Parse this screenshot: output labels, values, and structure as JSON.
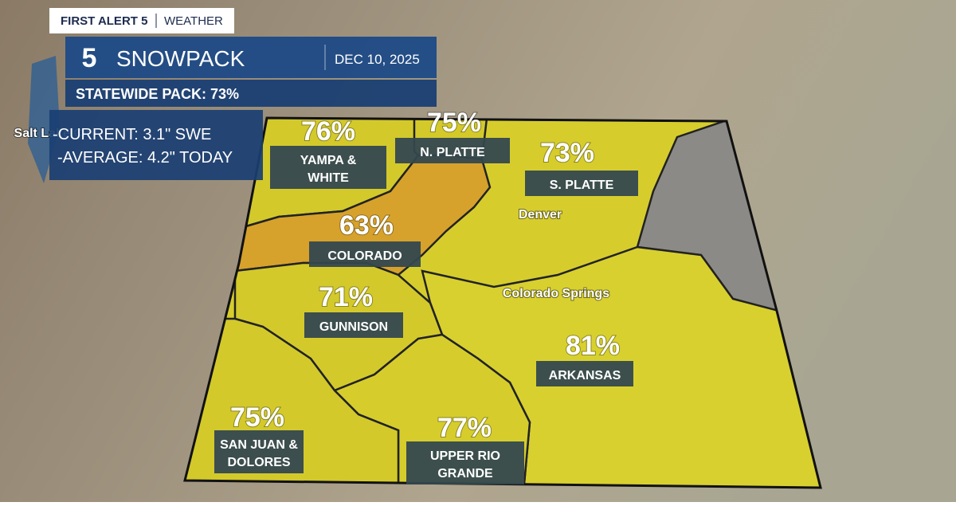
{
  "header": {
    "brand": "FIRST ALERT 5",
    "section": "WEATHER",
    "logo": "5",
    "title": "SNOWPACK",
    "date": "DEC 10, 2025",
    "statewide": "STATEWIDE PACK: 73%",
    "current": "-CURRENT: 3.1\" SWE",
    "average": "-AVERAGE: 4.2\" TODAY"
  },
  "basins": [
    {
      "name": [
        "YAMPA &",
        "WHITE"
      ],
      "percent": "76%"
    },
    {
      "name": [
        "N. PLATTE"
      ],
      "percent": "75%"
    },
    {
      "name": [
        "S. PLATTE"
      ],
      "percent": "73%"
    },
    {
      "name": [
        "COLORADO"
      ],
      "percent": "63%"
    },
    {
      "name": [
        "GUNNISON"
      ],
      "percent": "71%"
    },
    {
      "name": [
        "ARKANSAS"
      ],
      "percent": "81%"
    },
    {
      "name": [
        "SAN JUAN &",
        "DOLORES"
      ],
      "percent": "75%"
    },
    {
      "name": [
        "UPPER RIO",
        "GRANDE"
      ],
      "percent": "77%"
    }
  ],
  "cities": [
    "Salt Lake City",
    "Denver",
    "Colorado Springs"
  ]
}
